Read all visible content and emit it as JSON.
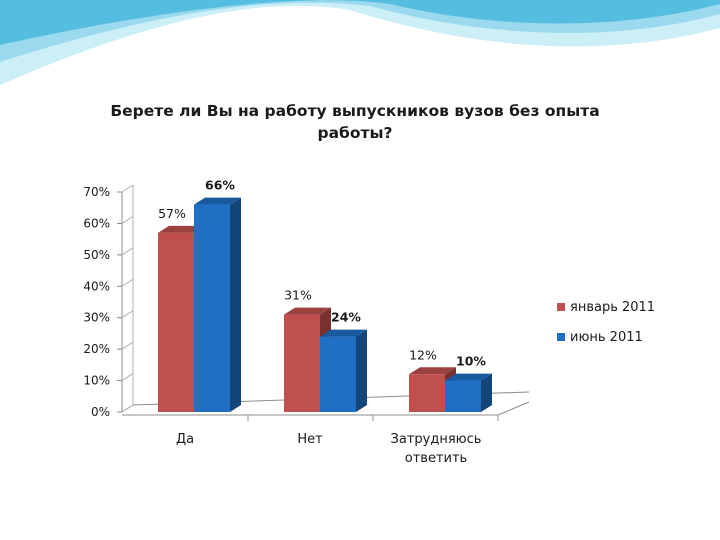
{
  "slide": {
    "decoration": "wave-banner",
    "colors": {
      "wave_light": "#bfe8f4",
      "wave_mid": "#8fd3ea",
      "wave_dark": "#43b5d8"
    }
  },
  "chart_data": {
    "type": "bar",
    "title": "Берете ли Вы на работу выпускников вузов без опыта работы?",
    "title_lines": [
      "Берете ли Вы на работу выпускников вузов без опыта",
      "работы?"
    ],
    "categories": [
      "Да",
      "Нет",
      "Затрудняюсь ответить"
    ],
    "category_lines": [
      [
        "Да"
      ],
      [
        "Нет"
      ],
      [
        "Затрудняюсь",
        "ответить"
      ]
    ],
    "series": [
      {
        "name": "январь 2011",
        "values": [
          57,
          31,
          12
        ],
        "labels": [
          "57%",
          "31%",
          "12%"
        ],
        "color": "#c0504d"
      },
      {
        "name": "июнь 2011",
        "values": [
          66,
          24,
          10
        ],
        "labels": [
          "66%",
          "24%",
          "10%"
        ],
        "color": "#1f6fc5"
      }
    ],
    "ylim": [
      0,
      70
    ],
    "yticks": [
      "0%",
      "10%",
      "20%",
      "30%",
      "40%",
      "50%",
      "60%",
      "70%"
    ],
    "xlabel": "",
    "ylabel": "",
    "legend": "right",
    "grid": false,
    "style": "3d-column"
  }
}
